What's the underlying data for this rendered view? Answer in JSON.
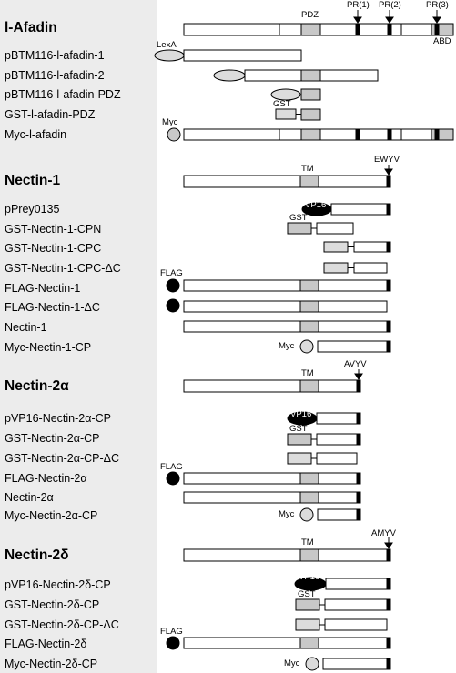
{
  "sections": [
    {
      "name": "afadin",
      "title": "l-Afadin",
      "domain_labels": [
        "PDZ",
        "PR(1)",
        "PR(2)",
        "PR(3)",
        "ABD"
      ],
      "constructs": [
        "pBTM116-l-afadin-1",
        "pBTM116-l-afadin-2",
        "pBTM116-l-afadin-PDZ",
        "GST-l-afadin-PDZ",
        "Myc-l-afadin"
      ]
    },
    {
      "name": "nectin1",
      "title": "Nectin-1",
      "domain_labels": [
        "TM",
        "EWYV"
      ],
      "constructs": [
        "pPrey0135",
        "GST-Nectin-1-CPN",
        "GST-Nectin-1-CPC",
        "GST-Nectin-1-CPC-ΔC",
        "FLAG-Nectin-1",
        "FLAG-Nectin-1-ΔC",
        "Nectin-1",
        "Myc-Nectin-1-CP"
      ]
    },
    {
      "name": "nectin2a",
      "title": "Nectin-2α",
      "domain_labels": [
        "TM",
        "AVYV"
      ],
      "constructs": [
        "pVP16-Nectin-2α-CP",
        "GST-Nectin-2α-CP",
        "GST-Nectin-2α-CP-ΔC",
        "FLAG-Nectin-2α",
        "Nectin-2α",
        "Myc-Nectin-2α-CP"
      ]
    },
    {
      "name": "nectin2d",
      "title": "Nectin-2δ",
      "domain_labels": [
        "TM",
        "AMYV"
      ],
      "constructs": [
        "pVP16-Nectin-2δ-CP",
        "GST-Nectin-2δ-CP",
        "GST-Nectin-2δ-CP-ΔC",
        "FLAG-Nectin-2δ",
        "Myc-Nectin-2δ-CP"
      ]
    }
  ],
  "tags": {
    "lexa": "LexA",
    "gst": "GST",
    "myc": "Myc",
    "vp16": "VP16",
    "flag": "FLAG"
  },
  "colors": {
    "domain_fill": "#c8c8c8",
    "tag_light": "#dcdcdc",
    "dark_mark": "#000000",
    "label_panel": "#ececec"
  }
}
